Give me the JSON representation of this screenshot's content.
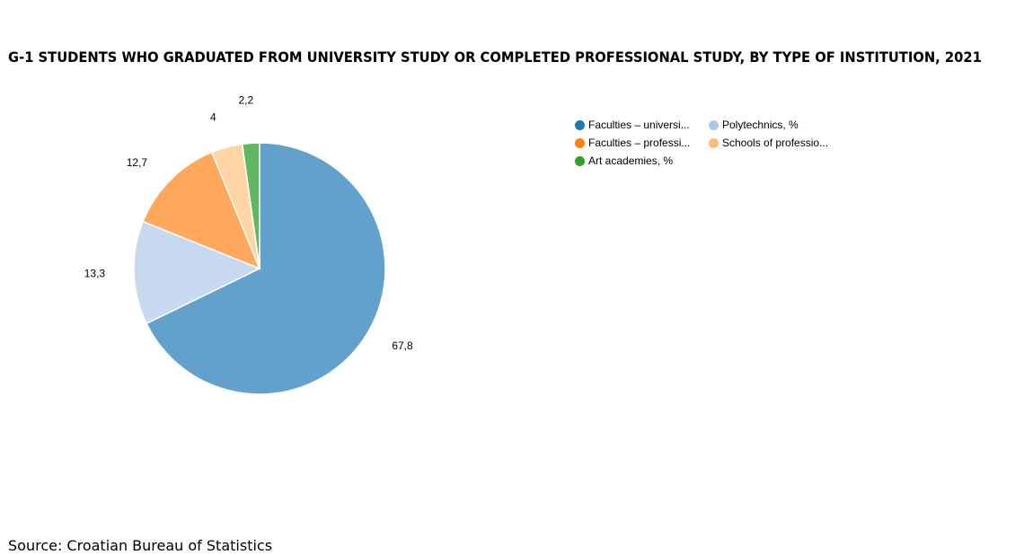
{
  "title": "G-1 STUDENTS WHO GRADUATED FROM UNIVERSITY STUDY OR COMPLETED PROFESSIONAL STUDY, BY TYPE OF INSTITUTION, 2021",
  "source": "Source: Croatian Bureau of Statistics",
  "legend": [
    {
      "label": "Faculties – universi...",
      "color": "#1f77b4"
    },
    {
      "label": "Polytechnics, %",
      "color": "#aec7e8"
    },
    {
      "label": "Faculties – professi...",
      "color": "#ff7f0e"
    },
    {
      "label": "Schools of professio...",
      "color": "#ffbb78"
    },
    {
      "label": "Art academies, %",
      "color": "#2ca02c"
    }
  ],
  "chart_data": {
    "type": "pie",
    "categories": [
      "Faculties – universi...",
      "Polytechnics, %",
      "Faculties – professi...",
      "Schools of professio...",
      "Art academies, %"
    ],
    "values": [
      67.8,
      13.3,
      12.7,
      4,
      2.2
    ],
    "value_labels": [
      "67,8",
      "13,3",
      "12,7",
      "4",
      "2,2"
    ],
    "slice_colors": [
      "#62a1cb",
      "#c8d9ef",
      "#ffa75a",
      "#ffd5a6",
      "#62b862"
    ],
    "legend_position": "top-right"
  }
}
